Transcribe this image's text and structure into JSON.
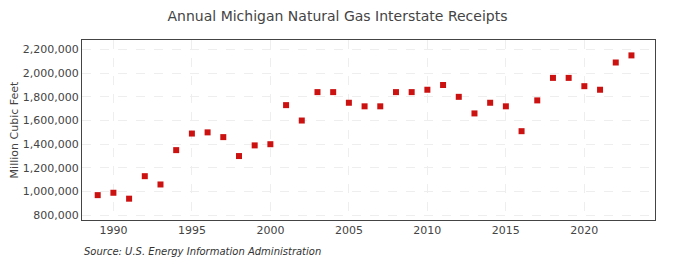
{
  "chart_data": {
    "type": "scatter",
    "title": "Annual Michigan Natural Gas Interstate Receipts",
    "ylabel": "Million Cubic Feet",
    "source": "Source: U.S. Energy Information Administration",
    "color": "#cc1111",
    "marker": "square",
    "grid": true,
    "xlim": [
      1988.0,
      2024.5
    ],
    "xticks": [
      1990,
      1995,
      2000,
      2005,
      2010,
      2015,
      2020
    ],
    "ylim": [
      760000,
      2280000
    ],
    "yticks": [
      {
        "value": 800000,
        "label": "800,000"
      },
      {
        "value": 1000000,
        "label": "1,000,000"
      },
      {
        "value": 1200000,
        "label": "1,200,000"
      },
      {
        "value": 1400000,
        "label": "1,400,000"
      },
      {
        "value": 1600000,
        "label": "1,600,000"
      },
      {
        "value": 1800000,
        "label": "1,800,000"
      },
      {
        "value": 2000000,
        "label": "2,000,000"
      },
      {
        "value": 2200000,
        "label": "2,200,000"
      }
    ],
    "x": [
      1989,
      1990,
      1991,
      1992,
      1993,
      1994,
      1995,
      1996,
      1997,
      1998,
      1999,
      2000,
      2001,
      2002,
      2003,
      2004,
      2005,
      2006,
      2007,
      2008,
      2009,
      2010,
      2011,
      2012,
      2013,
      2014,
      2015,
      2016,
      2017,
      2018,
      2019,
      2020,
      2021,
      2022,
      2023
    ],
    "values": [
      970000,
      990000,
      940000,
      1130000,
      1060000,
      1350000,
      1490000,
      1500000,
      1460000,
      1300000,
      1390000,
      1400000,
      1730000,
      1600000,
      1840000,
      1840000,
      1750000,
      1720000,
      1720000,
      1840000,
      1840000,
      1860000,
      1900000,
      1800000,
      1660000,
      1750000,
      1720000,
      1510000,
      1770000,
      1960000,
      1960000,
      1890000,
      1860000,
      2090000,
      2150000
    ]
  }
}
